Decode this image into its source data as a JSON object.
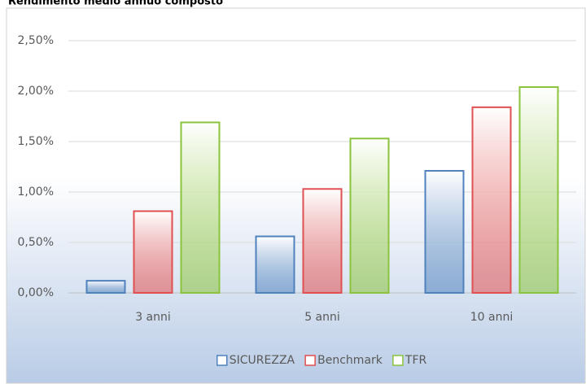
{
  "chart_data": {
    "type": "bar",
    "title": "Rendimento medio annuo composto",
    "categories": [
      "3 anni",
      "5 anni",
      "10 anni"
    ],
    "series": [
      {
        "name": "SICUREZZA",
        "color": "#4f81bd",
        "values": [
          0.12,
          0.56,
          1.21
        ]
      },
      {
        "name": "Benchmark",
        "color": "#e05050",
        "values": [
          0.81,
          1.03,
          1.84
        ]
      },
      {
        "name": "TFR",
        "color": "#8ac43c",
        "values": [
          1.69,
          1.53,
          2.04
        ]
      }
    ],
    "ylim": [
      0,
      2.5
    ],
    "yticks": [
      {
        "value": 0,
        "label": "0,00%"
      },
      {
        "value": 0.5,
        "label": "0,50%"
      },
      {
        "value": 1,
        "label": "1,00%"
      },
      {
        "value": 1.5,
        "label": "1,50%"
      },
      {
        "value": 2,
        "label": "2,00%"
      },
      {
        "value": 2.5,
        "label": "2,50%"
      }
    ],
    "grid": true,
    "legend": "bottom"
  }
}
